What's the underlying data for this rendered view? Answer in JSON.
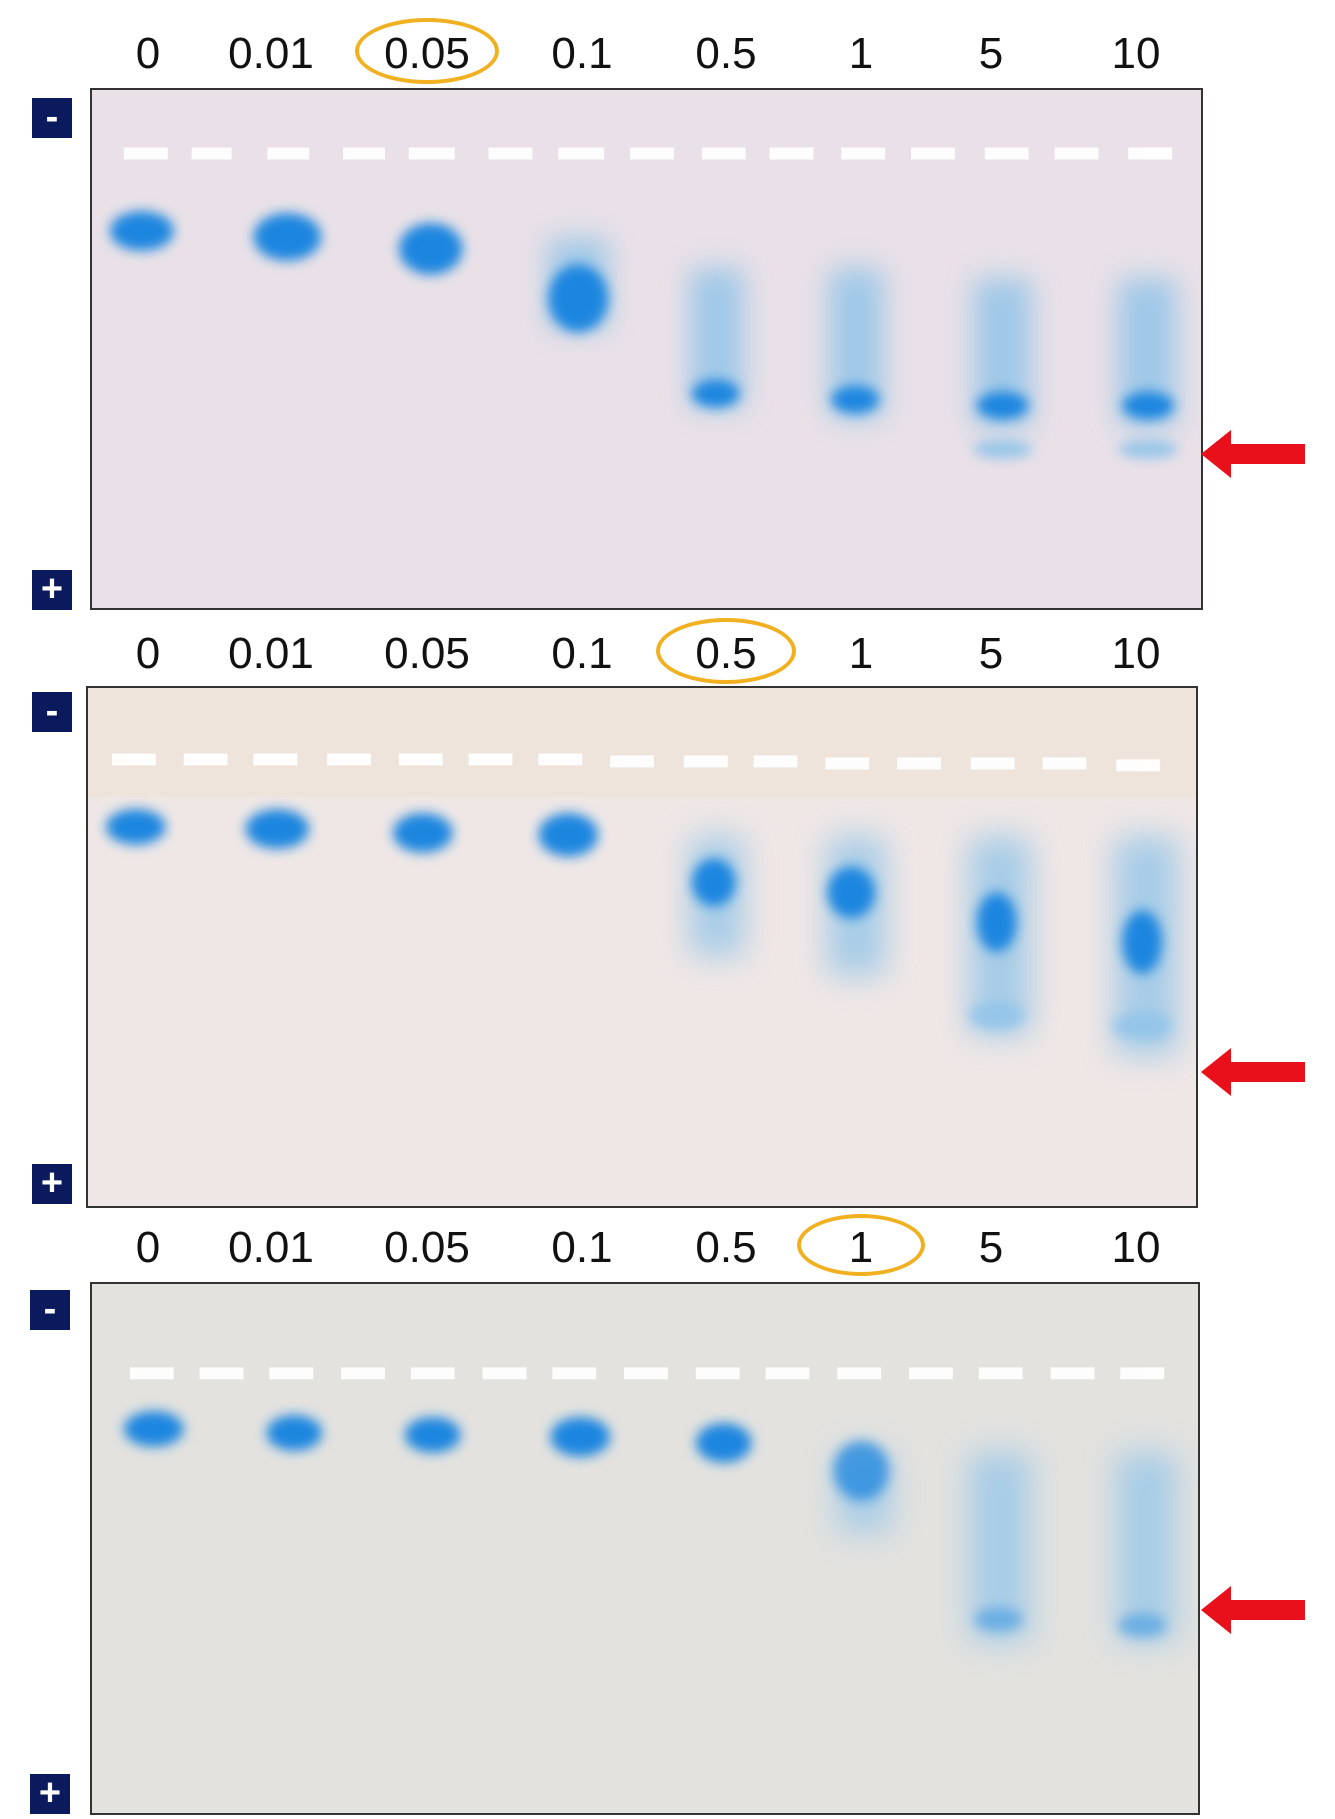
{
  "colors": {
    "band": "#1a86df",
    "highlight": "#f0b020",
    "arrow": "#e8101a",
    "pole_box": "#0a1a5c"
  },
  "panels": [
    {
      "lane_labels": [
        "0",
        "0.01",
        "0.05",
        "0.1",
        "0.5",
        "1",
        "5",
        "10"
      ],
      "highlighted_index": 2,
      "pole_top": "-",
      "pole_bottom": "+",
      "gel_color": "#e9e1e7",
      "arrow_icon": "red-arrow-left-icon"
    },
    {
      "lane_labels": [
        "0",
        "0.01",
        "0.05",
        "0.1",
        "0.5",
        "1",
        "5",
        "10"
      ],
      "highlighted_index": 4,
      "pole_top": "-",
      "pole_bottom": "+",
      "gel_color": "#efe7e6",
      "arrow_icon": "red-arrow-left-icon"
    },
    {
      "lane_labels": [
        "0",
        "0.01",
        "0.05",
        "0.1",
        "0.5",
        "1",
        "5",
        "10"
      ],
      "highlighted_index": 5,
      "pole_top": "-",
      "pole_bottom": "+",
      "gel_color": "#e3e2df",
      "arrow_icon": "red-arrow-left-icon"
    }
  ]
}
